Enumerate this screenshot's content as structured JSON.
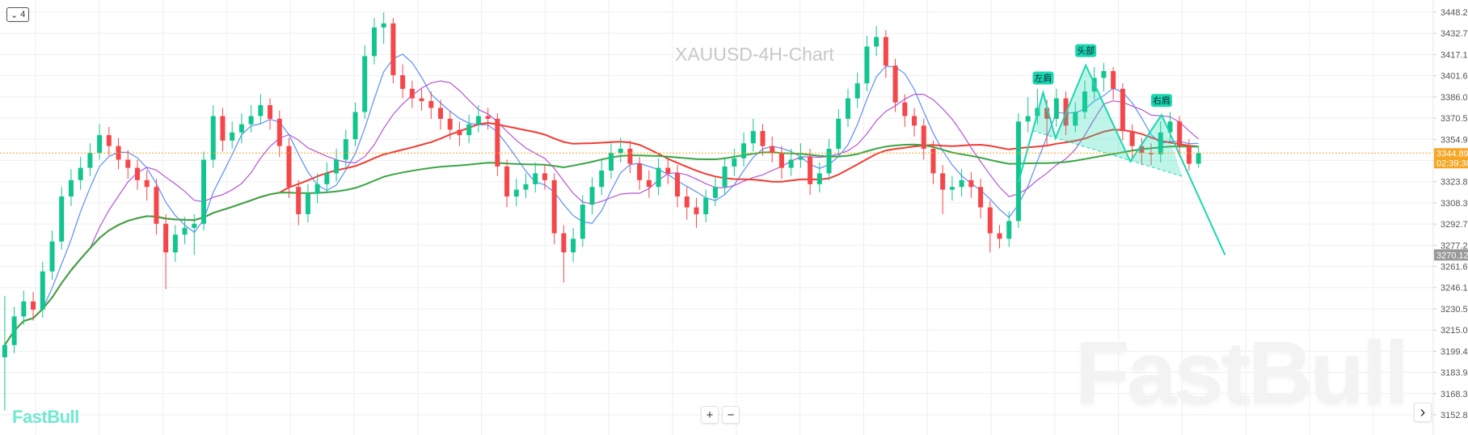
{
  "header": {
    "collapse_count": "4",
    "chart_title": "XAUUSD-4H-Chart"
  },
  "logo_text": "FastBull",
  "watermark_text": "FastBull",
  "controls": {
    "zoom_in": "+",
    "zoom_out": "−",
    "scroll_right": "›"
  },
  "colors": {
    "up": "#12c58e",
    "down": "#f5464a",
    "ma_blue": "#5b8ff9",
    "ma_purple": "#b455d6",
    "ma_red": "#f03c33",
    "ma_green": "#3aa545",
    "pattern": "#1ad7b0",
    "last_price": "#f5a623",
    "target_price": "#999999"
  },
  "chart_data": {
    "type": "candlestick",
    "title": "XAUUSD-4H-Chart",
    "ylim": [
      3152.84,
      3448.26
    ],
    "y_ticks": [
      "3448.26",
      "3432.71",
      "3417.16",
      "3401.61",
      "3386.06",
      "3370.52",
      "3354.97",
      "3339.42",
      "3323.87",
      "3308.32",
      "3292.78",
      "3277.23",
      "3261.68",
      "3246.13",
      "3230.58",
      "3215.03",
      "3199.49",
      "3183.94",
      "3168.39",
      "3152.84"
    ],
    "hidden_ticks": [
      "3339.42"
    ],
    "grid": true,
    "last_price": {
      "value": "3344.89",
      "countdown": "02:39:38"
    },
    "target_price": {
      "value": "3270.12"
    },
    "ohlc": [
      [
        3195,
        3240,
        3156,
        3204
      ],
      [
        3204,
        3232,
        3198,
        3225
      ],
      [
        3225,
        3244,
        3219,
        3236
      ],
      [
        3236,
        3243,
        3222,
        3230
      ],
      [
        3230,
        3265,
        3224,
        3258
      ],
      [
        3258,
        3288,
        3252,
        3280
      ],
      [
        3280,
        3320,
        3274,
        3313
      ],
      [
        3313,
        3333,
        3306,
        3325
      ],
      [
        3325,
        3342,
        3318,
        3334
      ],
      [
        3334,
        3352,
        3328,
        3345
      ],
      [
        3345,
        3366,
        3340,
        3358
      ],
      [
        3358,
        3364,
        3343,
        3350
      ],
      [
        3350,
        3356,
        3333,
        3340
      ],
      [
        3340,
        3347,
        3326,
        3334
      ],
      [
        3334,
        3340,
        3318,
        3325
      ],
      [
        3325,
        3332,
        3310,
        3320
      ],
      [
        3320,
        3326,
        3285,
        3293
      ],
      [
        3293,
        3300,
        3245,
        3272
      ],
      [
        3272,
        3292,
        3265,
        3285
      ],
      [
        3285,
        3298,
        3278,
        3290
      ],
      [
        3290,
        3300,
        3270,
        3293
      ],
      [
        3293,
        3346,
        3288,
        3340
      ],
      [
        3340,
        3380,
        3334,
        3372
      ],
      [
        3372,
        3378,
        3346,
        3354
      ],
      [
        3354,
        3368,
        3348,
        3360
      ],
      [
        3360,
        3374,
        3352,
        3366
      ],
      [
        3366,
        3380,
        3360,
        3372
      ],
      [
        3372,
        3388,
        3366,
        3380
      ],
      [
        3380,
        3385,
        3362,
        3370
      ],
      [
        3370,
        3376,
        3342,
        3350
      ],
      [
        3350,
        3356,
        3312,
        3320
      ],
      [
        3320,
        3325,
        3292,
        3300
      ],
      [
        3300,
        3322,
        3294,
        3315
      ],
      [
        3315,
        3330,
        3308,
        3322
      ],
      [
        3322,
        3338,
        3316,
        3330
      ],
      [
        3330,
        3348,
        3324,
        3340
      ],
      [
        3340,
        3362,
        3334,
        3355
      ],
      [
        3355,
        3382,
        3350,
        3375
      ],
      [
        3375,
        3424,
        3370,
        3416
      ],
      [
        3416,
        3444,
        3410,
        3437
      ],
      [
        3437,
        3448,
        3425,
        3440
      ],
      [
        3440,
        3444,
        3396,
        3402
      ],
      [
        3402,
        3410,
        3385,
        3392
      ],
      [
        3392,
        3398,
        3378,
        3385
      ],
      [
        3385,
        3392,
        3376,
        3383
      ],
      [
        3383,
        3390,
        3370,
        3378
      ],
      [
        3378,
        3384,
        3362,
        3370
      ],
      [
        3370,
        3376,
        3355,
        3362
      ],
      [
        3362,
        3368,
        3350,
        3358
      ],
      [
        3358,
        3373,
        3352,
        3366
      ],
      [
        3366,
        3380,
        3360,
        3372
      ],
      [
        3372,
        3378,
        3362,
        3370
      ],
      [
        3370,
        3374,
        3328,
        3335
      ],
      [
        3335,
        3340,
        3305,
        3313
      ],
      [
        3313,
        3326,
        3306,
        3318
      ],
      [
        3318,
        3330,
        3312,
        3322
      ],
      [
        3322,
        3338,
        3316,
        3330
      ],
      [
        3330,
        3336,
        3318,
        3325
      ],
      [
        3325,
        3330,
        3278,
        3286
      ],
      [
        3286,
        3292,
        3250,
        3272
      ],
      [
        3272,
        3290,
        3265,
        3282
      ],
      [
        3282,
        3314,
        3276,
        3307
      ],
      [
        3307,
        3327,
        3300,
        3320
      ],
      [
        3320,
        3340,
        3314,
        3332
      ],
      [
        3332,
        3352,
        3326,
        3345
      ],
      [
        3345,
        3356,
        3338,
        3348
      ],
      [
        3348,
        3354,
        3330,
        3337
      ],
      [
        3337,
        3342,
        3318,
        3325
      ],
      [
        3325,
        3332,
        3312,
        3320
      ],
      [
        3320,
        3341,
        3314,
        3334
      ],
      [
        3334,
        3340,
        3322,
        3330
      ],
      [
        3330,
        3336,
        3305,
        3313
      ],
      [
        3313,
        3320,
        3296,
        3305
      ],
      [
        3305,
        3312,
        3290,
        3300
      ],
      [
        3300,
        3318,
        3294,
        3312
      ],
      [
        3312,
        3327,
        3306,
        3320
      ],
      [
        3320,
        3342,
        3314,
        3335
      ],
      [
        3335,
        3348,
        3328,
        3341
      ],
      [
        3341,
        3360,
        3335,
        3352
      ],
      [
        3352,
        3370,
        3346,
        3361
      ],
      [
        3361,
        3366,
        3343,
        3350
      ],
      [
        3350,
        3357,
        3338,
        3345
      ],
      [
        3345,
        3350,
        3326,
        3334
      ],
      [
        3334,
        3348,
        3328,
        3340
      ],
      [
        3340,
        3352,
        3334,
        3342
      ],
      [
        3342,
        3348,
        3314,
        3322
      ],
      [
        3322,
        3338,
        3316,
        3330
      ],
      [
        3330,
        3355,
        3325,
        3348
      ],
      [
        3348,
        3377,
        3342,
        3370
      ],
      [
        3370,
        3392,
        3364,
        3385
      ],
      [
        3385,
        3404,
        3378,
        3396
      ],
      [
        3396,
        3431,
        3390,
        3423
      ],
      [
        3423,
        3438,
        3416,
        3430
      ],
      [
        3430,
        3435,
        3400,
        3409
      ],
      [
        3409,
        3414,
        3375,
        3382
      ],
      [
        3382,
        3388,
        3364,
        3372
      ],
      [
        3372,
        3378,
        3357,
        3365
      ],
      [
        3365,
        3370,
        3340,
        3348
      ],
      [
        3348,
        3354,
        3322,
        3330
      ],
      [
        3330,
        3336,
        3300,
        3318
      ],
      [
        3318,
        3328,
        3310,
        3320
      ],
      [
        3320,
        3333,
        3313,
        3325
      ],
      [
        3325,
        3331,
        3312,
        3320
      ],
      [
        3320,
        3326,
        3297,
        3305
      ],
      [
        3305,
        3310,
        3272,
        3286
      ],
      [
        3286,
        3292,
        3275,
        3282
      ],
      [
        3282,
        3302,
        3276,
        3295
      ],
      [
        3295,
        3374,
        3290,
        3368
      ],
      [
        3368,
        3386,
        3360,
        3372
      ],
      [
        3372,
        3392,
        3366,
        3378
      ],
      [
        3378,
        3384,
        3350,
        3370
      ],
      [
        3370,
        3392,
        3364,
        3385
      ],
      [
        3385,
        3390,
        3358,
        3365
      ],
      [
        3365,
        3382,
        3360,
        3375
      ],
      [
        3375,
        3398,
        3370,
        3390
      ],
      [
        3390,
        3408,
        3384,
        3400
      ],
      [
        3400,
        3411,
        3390,
        3405
      ],
      [
        3405,
        3408,
        3384,
        3392
      ],
      [
        3392,
        3396,
        3354,
        3361
      ],
      [
        3361,
        3366,
        3340,
        3350
      ],
      [
        3350,
        3356,
        3336,
        3345
      ],
      [
        3345,
        3352,
        3336,
        3344
      ],
      [
        3344,
        3368,
        3338,
        3360
      ],
      [
        3360,
        3375,
        3354,
        3368
      ],
      [
        3368,
        3372,
        3342,
        3350
      ],
      [
        3350,
        3355,
        3332,
        3337
      ],
      [
        3337,
        3350,
        3334,
        3344.89
      ]
    ],
    "moving_averages": [
      {
        "period": 5,
        "color": "#5b8ff9"
      },
      {
        "period": 10,
        "color": "#b455d6"
      },
      {
        "period": 30,
        "color": "#f03c33"
      },
      {
        "period": 60,
        "color": "#3aa545"
      }
    ],
    "pattern": {
      "type": "head-and-shoulders",
      "labels": {
        "left_shoulder": "左肩",
        "head": "头部",
        "right_shoulder": "右肩"
      },
      "path": [
        [
          107.0,
          3323.5
        ],
        [
          109.6,
          3389.2
        ],
        [
          110.9,
          3355.8
        ],
        [
          114.1,
          3409.3
        ],
        [
          118.8,
          3338.7
        ],
        [
          122.1,
          3372.8
        ],
        [
          128.8,
          3270.12
        ]
      ],
      "neckline": [
        [
          108.5,
          3361.2
        ],
        [
          124.3,
          3327.8
        ]
      ]
    }
  }
}
